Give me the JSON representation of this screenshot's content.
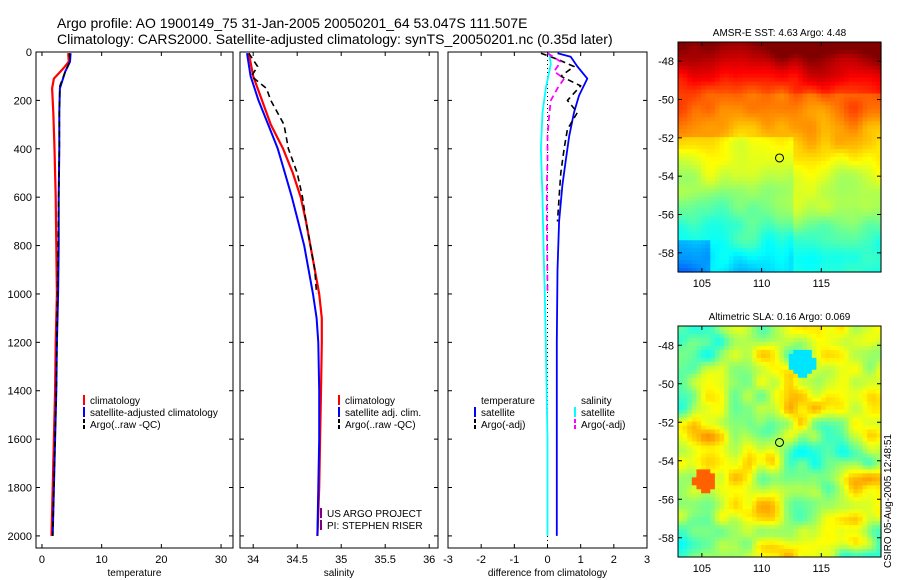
{
  "header": {
    "line1": "Argo profile: AO 1900149_75 31-Jan-2005 20050201_64 53.047S 111.507E",
    "line2": "Climatology: CARS2000. Satellite-adjusted climatology: synTS_20050201.nc (0.35d later)"
  },
  "credit": "CSIRO 05-Aug-2005 12:48:51",
  "project": [
    "US ARGO PROJECT",
    "PI: STEPHEN RISER"
  ],
  "colors": {
    "climatology": "#ff0000",
    "satellite": "#0000ff",
    "argo": "#000000",
    "salinity_satellite": "#00ffff",
    "salinity_argo": "#ff00ff"
  },
  "chart_data": [
    {
      "type": "line",
      "id": "temperature",
      "xlabel": "temperature",
      "ylabel": "",
      "xlim": [
        -1,
        32
      ],
      "ylim": [
        0,
        2050
      ],
      "xticks": [
        0,
        10,
        20,
        30
      ],
      "yticks": [
        0,
        200,
        400,
        600,
        800,
        1000,
        1200,
        1400,
        1600,
        1800,
        2000
      ],
      "y_reversed": true,
      "legend": [
        {
          "label": "climatology",
          "color": "#ff0000"
        },
        {
          "label": "satellite-adjusted climatology",
          "color": "#0000ff"
        },
        {
          "label": "Argo(..raw -QC)",
          "color": "#000000"
        }
      ],
      "series": [
        {
          "name": "climatology",
          "color": "#ff0000",
          "dash": "",
          "width": 2.2,
          "points": [
            [
              4.4,
              5
            ],
            [
              4.5,
              40
            ],
            [
              3.5,
              70
            ],
            [
              2.0,
              110
            ],
            [
              1.7,
              150
            ],
            [
              1.9,
              250
            ],
            [
              2.1,
              400
            ],
            [
              2.3,
              600
            ],
            [
              2.4,
              800
            ],
            [
              2.5,
              1000
            ],
            [
              2.3,
              1200
            ],
            [
              2.2,
              1400
            ],
            [
              2.0,
              1600
            ],
            [
              1.8,
              1800
            ],
            [
              1.6,
              2000
            ]
          ]
        },
        {
          "name": "satellite-adjusted climatology",
          "color": "#0000ff",
          "dash": "",
          "width": 2.0,
          "points": [
            [
              4.8,
              5
            ],
            [
              4.7,
              40
            ],
            [
              3.9,
              80
            ],
            [
              3.0,
              150
            ],
            [
              2.9,
              250
            ],
            [
              2.9,
              400
            ],
            [
              2.8,
              600
            ],
            [
              2.8,
              800
            ],
            [
              2.7,
              1000
            ],
            [
              2.5,
              1200
            ],
            [
              2.4,
              1400
            ],
            [
              2.2,
              1600
            ],
            [
              2.0,
              1800
            ],
            [
              1.8,
              2000
            ]
          ]
        },
        {
          "name": "Argo(..raw -QC)",
          "color": "#000000",
          "dash": "6,4",
          "width": 1.6,
          "points": [
            [
              4.6,
              5
            ],
            [
              4.7,
              40
            ],
            [
              3.9,
              80
            ],
            [
              3.0,
              140
            ],
            [
              2.9,
              250
            ],
            [
              2.9,
              400
            ],
            [
              2.8,
              600
            ],
            [
              2.7,
              800
            ],
            [
              2.6,
              1000
            ],
            [
              2.5,
              1200
            ],
            [
              2.4,
              1400
            ],
            [
              2.2,
              1600
            ],
            [
              2.0,
              1800
            ],
            [
              1.8,
              2000
            ]
          ]
        }
      ]
    },
    {
      "type": "line",
      "id": "salinity",
      "xlabel": "salinity",
      "xlim": [
        33.85,
        36.1
      ],
      "ylim": [
        0,
        2050
      ],
      "xticks": [
        34,
        34.5,
        35,
        35.5,
        36
      ],
      "xtick_labels": [
        "34",
        "34.5",
        "35",
        "35.5",
        "36"
      ],
      "y_reversed": true,
      "legend": [
        {
          "label": "climatology",
          "color": "#ff0000"
        },
        {
          "label": "satellite adj. clim.",
          "color": "#0000ff"
        },
        {
          "label": "Argo(..raw -QC)",
          "color": "#000000"
        }
      ],
      "series": [
        {
          "name": "climatology",
          "color": "#ff0000",
          "dash": "",
          "width": 2.2,
          "points": [
            [
              33.95,
              5
            ],
            [
              34.0,
              100
            ],
            [
              34.1,
              200
            ],
            [
              34.2,
              300
            ],
            [
              34.34,
              400
            ],
            [
              34.45,
              500
            ],
            [
              34.54,
              600
            ],
            [
              34.6,
              700
            ],
            [
              34.65,
              800
            ],
            [
              34.7,
              900
            ],
            [
              34.75,
              1000
            ],
            [
              34.78,
              1100
            ],
            [
              34.78,
              1200
            ],
            [
              34.77,
              1400
            ],
            [
              34.76,
              1600
            ],
            [
              34.75,
              1800
            ],
            [
              34.73,
              2000
            ]
          ]
        },
        {
          "name": "satellite adj. clim.",
          "color": "#0000ff",
          "dash": "",
          "width": 2.0,
          "points": [
            [
              33.93,
              5
            ],
            [
              33.97,
              100
            ],
            [
              34.06,
              200
            ],
            [
              34.17,
              300
            ],
            [
              34.28,
              400
            ],
            [
              34.36,
              500
            ],
            [
              34.44,
              600
            ],
            [
              34.51,
              700
            ],
            [
              34.58,
              800
            ],
            [
              34.63,
              900
            ],
            [
              34.68,
              1000
            ],
            [
              34.72,
              1100
            ],
            [
              34.74,
              1200
            ],
            [
              34.75,
              1400
            ],
            [
              34.75,
              1600
            ],
            [
              34.74,
              1800
            ],
            [
              34.73,
              2000
            ]
          ]
        },
        {
          "name": "Argo(..raw -QC)",
          "color": "#000000",
          "dash": "6,4",
          "width": 1.6,
          "points": [
            [
              33.95,
              5
            ],
            [
              34.05,
              60
            ],
            [
              33.98,
              100
            ],
            [
              34.15,
              150
            ],
            [
              34.2,
              200
            ],
            [
              34.35,
              300
            ],
            [
              34.4,
              400
            ],
            [
              34.5,
              500
            ],
            [
              34.56,
              600
            ],
            [
              34.6,
              700
            ],
            [
              34.65,
              800
            ],
            [
              34.7,
              900
            ],
            [
              34.72,
              1000
            ]
          ]
        }
      ]
    },
    {
      "type": "line",
      "id": "difference",
      "xlabel": "difference from climatology",
      "xlim": [
        -3,
        3
      ],
      "ylim": [
        0,
        2050
      ],
      "xticks": [
        -3,
        -2,
        -1,
        0,
        1,
        2,
        3
      ],
      "xtick_labels": [
        "-3",
        "-2",
        "-1",
        "0",
        "1",
        "2",
        "3"
      ],
      "y_reversed": true,
      "legend_temperature": [
        {
          "label": "temperature",
          "color": ""
        },
        {
          "label": "satellite",
          "color": "#0000ff"
        },
        {
          "label": "Argo(-adj)",
          "color": "#000000"
        }
      ],
      "legend_salinity": [
        {
          "label": "salinity",
          "color": ""
        },
        {
          "label": "satellite",
          "color": "#00ffff"
        },
        {
          "label": "Argo(-adj)",
          "color": "#ff00ff"
        }
      ],
      "series": [
        {
          "name": "temperature satellite",
          "color": "#0000ff",
          "dash": "",
          "width": 1.8,
          "points": [
            [
              0.3,
              5
            ],
            [
              0.7,
              20
            ],
            [
              0.9,
              60
            ],
            [
              1.2,
              110
            ],
            [
              0.95,
              180
            ],
            [
              0.8,
              250
            ],
            [
              0.65,
              350
            ],
            [
              0.55,
              450
            ],
            [
              0.45,
              550
            ],
            [
              0.35,
              700
            ],
            [
              0.3,
              900
            ],
            [
              0.28,
              1200
            ],
            [
              0.28,
              1600
            ],
            [
              0.28,
              2000
            ]
          ]
        },
        {
          "name": "temperature Argo(-adj)",
          "color": "#000000",
          "dash": "6,4",
          "width": 1.6,
          "points": [
            [
              -0.2,
              5
            ],
            [
              0.3,
              30
            ],
            [
              0.8,
              60
            ],
            [
              0.4,
              100
            ],
            [
              1.0,
              140
            ],
            [
              0.6,
              200
            ],
            [
              0.9,
              250
            ],
            [
              0.6,
              320
            ],
            [
              0.5,
              400
            ],
            [
              0.4,
              500
            ],
            [
              0.35,
              600
            ],
            [
              0.3,
              700
            ]
          ]
        },
        {
          "name": "salinity satellite",
          "color": "#00ffff",
          "dash": "",
          "width": 1.8,
          "points": [
            [
              0.05,
              5
            ],
            [
              0.1,
              50
            ],
            [
              -0.05,
              150
            ],
            [
              -0.15,
              250
            ],
            [
              -0.2,
              400
            ],
            [
              -0.15,
              600
            ],
            [
              -0.12,
              800
            ],
            [
              -0.08,
              1000
            ],
            [
              -0.05,
              1200
            ],
            [
              0.0,
              1600
            ],
            [
              0.0,
              2000
            ]
          ]
        },
        {
          "name": "salinity Argo(-adj)",
          "color": "#ff00ff",
          "dash": "6,4",
          "width": 1.8,
          "points": [
            [
              0.0,
              5
            ],
            [
              0.4,
              40
            ],
            [
              0.2,
              80
            ],
            [
              0.5,
              110
            ],
            [
              0.3,
              150
            ],
            [
              0.1,
              200
            ],
            [
              0.05,
              260
            ],
            [
              0.0,
              350
            ],
            [
              0.0,
              450
            ],
            [
              -0.02,
              550
            ],
            [
              -0.02,
              700
            ],
            [
              -0.01,
              850
            ],
            [
              0.0,
              1000
            ]
          ]
        }
      ],
      "zero_line": 0
    },
    {
      "type": "heatmap",
      "id": "sst-map",
      "title": "AMSR-E SST: 4.63 Argo: 4.48",
      "xlim": [
        103,
        120
      ],
      "ylim": [
        -59,
        -47
      ],
      "xticks": [
        105,
        110,
        115
      ],
      "yticks": [
        -58,
        -56,
        -54,
        -52,
        -50,
        -48
      ],
      "marker": {
        "lon": 111.5,
        "lat": -53.05
      }
    },
    {
      "type": "heatmap",
      "id": "sla-map",
      "title": "Altimetric SLA: 0.16 Argo: 0.069",
      "xlim": [
        103,
        120
      ],
      "ylim": [
        -59,
        -47
      ],
      "xticks": [
        105,
        110,
        115
      ],
      "yticks": [
        -58,
        -56,
        -54,
        -52,
        -50,
        -48
      ],
      "marker": {
        "lon": 111.5,
        "lat": -53.05
      }
    }
  ]
}
